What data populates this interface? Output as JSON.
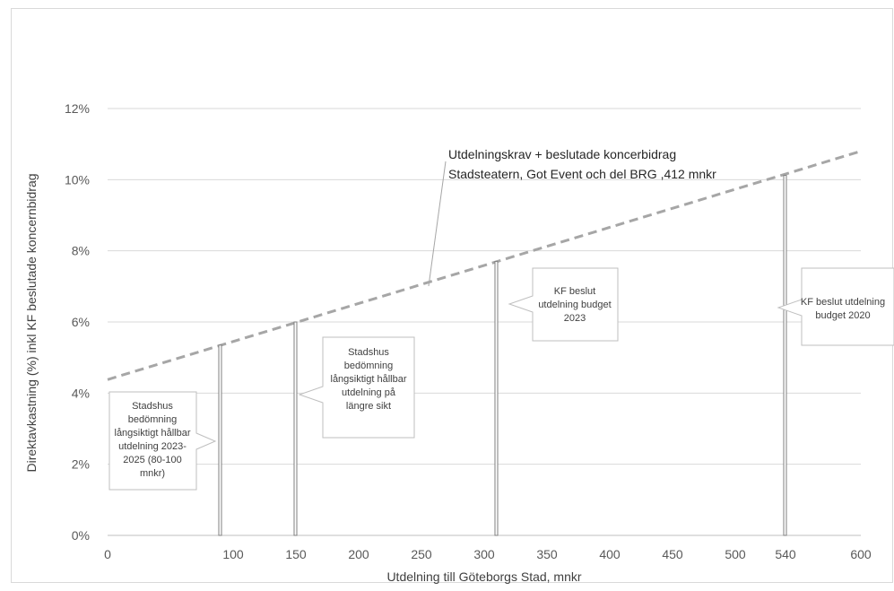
{
  "chart_data": {
    "type": "line",
    "title": "",
    "xlabel": "Utdelning till Göteborgs Stad, mnkr",
    "ylabel": "Direktavkastning (%) inkl KF beslutade koncernbidrag",
    "xlim": [
      0,
      600
    ],
    "ylim": [
      0,
      12
    ],
    "x_ticks": [
      {
        "value": 0,
        "label": "0"
      },
      {
        "value": 100,
        "label": "100"
      },
      {
        "value": 150,
        "label": "150"
      },
      {
        "value": 200,
        "label": "200"
      },
      {
        "value": 250,
        "label": "250"
      },
      {
        "value": 300,
        "label": "300"
      },
      {
        "value": 350,
        "label": "350"
      },
      {
        "value": 400,
        "label": "400"
      },
      {
        "value": 450,
        "label": "450"
      },
      {
        "value": 500,
        "label": "500"
      },
      {
        "value": 540,
        "label": "540"
      },
      {
        "value": 600,
        "label": "600"
      }
    ],
    "y_ticks": [
      {
        "value": 0,
        "label": "0%"
      },
      {
        "value": 2,
        "label": "2%"
      },
      {
        "value": 4,
        "label": "4%"
      },
      {
        "value": 6,
        "label": "6%"
      },
      {
        "value": 8,
        "label": "8%"
      },
      {
        "value": 10,
        "label": "10%"
      },
      {
        "value": 12,
        "label": "12%"
      }
    ],
    "grid": true,
    "series": [
      {
        "name": "",
        "style": "dashed",
        "color": "#a6a6a6",
        "x": [
          0,
          600
        ],
        "y": [
          4.38,
          10.8
        ]
      }
    ],
    "bars": [
      {
        "x": 90,
        "y": 5.35
      },
      {
        "x": 150,
        "y": 6.0
      },
      {
        "x": 310,
        "y": 7.7
      },
      {
        "x": 540,
        "y": 10.12
      }
    ],
    "dashed_line_label": {
      "lines": [
        "Utdelningskrav + beslutade koncerbidrag",
        "Stadsteatern, Got Event och del BRG ,412 mnkr"
      ]
    },
    "callouts": [
      {
        "lines": [
          "Stadshus",
          "bedömning",
          "långsiktigt hållbar",
          "utdelning 2023-",
          "2025 (80-100",
          "mnkr)"
        ]
      },
      {
        "lines": [
          "Stadshus",
          "bedömning",
          "långsiktigt hållbar",
          "utdelning på",
          "längre sikt"
        ]
      },
      {
        "lines": [
          "KF beslut",
          "utdelning budget",
          "2023"
        ]
      },
      {
        "lines": [
          "KF beslut utdelning",
          "budget 2020"
        ]
      }
    ]
  }
}
